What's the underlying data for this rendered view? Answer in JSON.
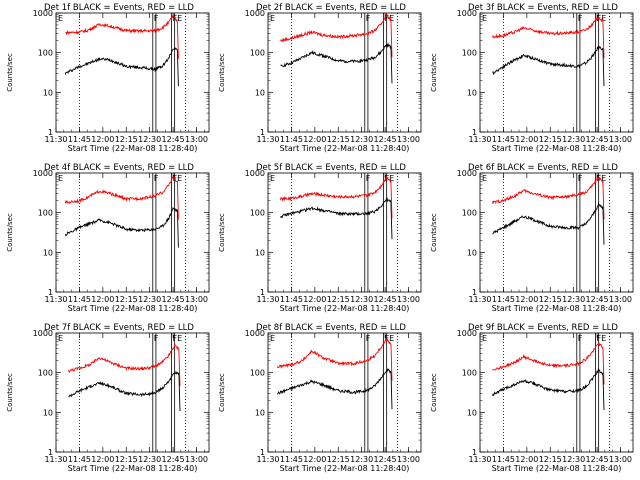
{
  "figure": {
    "ytick_labels": [
      "1",
      "10",
      "100",
      "1000"
    ],
    "xtick_labels": [
      "11:30",
      "11:45",
      "12:00",
      "12:15",
      "12:30",
      "12:45",
      "13:00"
    ],
    "ylabel": "Counts/sec",
    "xlabel": "Start Time (22-Mar-08 11:28:40)",
    "marker_labels": [
      "E",
      "F",
      "FE"
    ],
    "colors": {
      "events": "#000000",
      "lld": "#ff0000",
      "axes": "#000000",
      "background": "#ffffff"
    }
  },
  "chart_data": [
    {
      "type": "line",
      "title": "Det 1f BLACK = Events, RED = LLD",
      "xlabel": "Start Time (22-Mar-08 11:28:40)",
      "ylabel": "Counts/sec",
      "yscale": "log",
      "ylim": [
        1,
        1000
      ],
      "xlim": [
        "11:30",
        "13:08"
      ],
      "x_anchors": [
        "11:36",
        "11:45",
        "11:50",
        "11:58",
        "12:05",
        "12:15",
        "12:25",
        "12:33",
        "12:38",
        "12:42",
        "12:45",
        "12:48"
      ],
      "series": [
        {
          "name": "Events",
          "color": "#000000",
          "values": [
            30,
            45,
            52,
            70,
            65,
            45,
            42,
            38,
            45,
            70,
            130,
            120
          ]
        },
        {
          "name": "LLD",
          "color": "#ff0000",
          "values": [
            320,
            330,
            360,
            520,
            460,
            360,
            350,
            360,
            420,
            560,
            850,
            580
          ]
        }
      ]
    },
    {
      "type": "line",
      "title": "Det 2f BLACK = Events, RED = LLD",
      "xlabel": "Start Time (22-Mar-08 11:28:40)",
      "ylabel": "Counts/sec",
      "yscale": "log",
      "ylim": [
        1,
        1000
      ],
      "xlim": [
        "11:30",
        "13:08"
      ],
      "x_anchors": [
        "11:38",
        "11:45",
        "11:52",
        "11:58",
        "12:05",
        "12:15",
        "12:25",
        "12:33",
        "12:38",
        "12:42",
        "12:46",
        "12:49"
      ],
      "series": [
        {
          "name": "Events",
          "color": "#000000",
          "values": [
            45,
            55,
            75,
            100,
            85,
            62,
            60,
            65,
            75,
            100,
            160,
            140
          ]
        },
        {
          "name": "LLD",
          "color": "#ff0000",
          "values": [
            200,
            230,
            280,
            330,
            280,
            250,
            270,
            300,
            350,
            500,
            900,
            650
          ]
        }
      ]
    },
    {
      "type": "line",
      "title": "Det 3f BLACK = Events, RED = LLD",
      "xlabel": "Start Time (22-Mar-08 11:28:40)",
      "ylabel": "Counts/sec",
      "yscale": "log",
      "ylim": [
        1,
        1000
      ],
      "xlim": [
        "11:30",
        "13:08"
      ],
      "x_anchors": [
        "11:38",
        "11:45",
        "11:52",
        "11:58",
        "12:05",
        "12:15",
        "12:25",
        "12:33",
        "12:38",
        "12:42",
        "12:46",
        "12:49"
      ],
      "series": [
        {
          "name": "Events",
          "color": "#000000",
          "values": [
            30,
            45,
            65,
            85,
            70,
            52,
            48,
            45,
            55,
            80,
            140,
            120
          ]
        },
        {
          "name": "LLD",
          "color": "#ff0000",
          "values": [
            250,
            270,
            330,
            420,
            360,
            300,
            310,
            330,
            380,
            520,
            800,
            600
          ]
        }
      ]
    },
    {
      "type": "line",
      "title": "Det 4f BLACK = Events, RED = LLD",
      "xlabel": "Start Time (22-Mar-08 11:28:40)",
      "ylabel": "Counts/sec",
      "yscale": "log",
      "ylim": [
        1,
        1000
      ],
      "xlim": [
        "11:30",
        "13:08"
      ],
      "x_anchors": [
        "11:36",
        "11:45",
        "11:50",
        "11:58",
        "12:05",
        "12:15",
        "12:25",
        "12:33",
        "12:38",
        "12:42",
        "12:45",
        "12:48"
      ],
      "series": [
        {
          "name": "Events",
          "color": "#000000",
          "values": [
            28,
            42,
            50,
            65,
            55,
            38,
            36,
            38,
            45,
            70,
            130,
            110
          ]
        },
        {
          "name": "LLD",
          "color": "#ff0000",
          "values": [
            180,
            200,
            240,
            350,
            300,
            220,
            230,
            260,
            320,
            480,
            800,
            560
          ]
        }
      ]
    },
    {
      "type": "line",
      "title": "Det 5f BLACK = Events, RED = LLD",
      "xlabel": "Start Time (22-Mar-08 11:28:40)",
      "ylabel": "Counts/sec",
      "yscale": "log",
      "ylim": [
        1,
        1000
      ],
      "xlim": [
        "11:30",
        "13:08"
      ],
      "x_anchors": [
        "11:38",
        "11:45",
        "11:52",
        "11:58",
        "12:05",
        "12:15",
        "12:25",
        "12:33",
        "12:38",
        "12:42",
        "12:46",
        "12:49"
      ],
      "series": [
        {
          "name": "Events",
          "color": "#000000",
          "values": [
            80,
            95,
            110,
            130,
            115,
            95,
            92,
            95,
            105,
            140,
            220,
            180
          ]
        },
        {
          "name": "LLD",
          "color": "#ff0000",
          "values": [
            220,
            230,
            260,
            300,
            280,
            250,
            255,
            270,
            320,
            450,
            800,
            600
          ]
        }
      ]
    },
    {
      "type": "line",
      "title": "Det 6f BLACK = Events, RED = LLD",
      "xlabel": "Start Time (22-Mar-08 11:28:40)",
      "ylabel": "Counts/sec",
      "yscale": "log",
      "ylim": [
        1,
        1000
      ],
      "xlim": [
        "11:30",
        "13:08"
      ],
      "x_anchors": [
        "11:38",
        "11:45",
        "11:52",
        "11:58",
        "12:05",
        "12:15",
        "12:25",
        "12:33",
        "12:38",
        "12:42",
        "12:46",
        "12:49"
      ],
      "series": [
        {
          "name": "Events",
          "color": "#000000",
          "values": [
            30,
            42,
            60,
            80,
            65,
            45,
            42,
            42,
            52,
            85,
            160,
            130
          ]
        },
        {
          "name": "LLD",
          "color": "#ff0000",
          "values": [
            180,
            200,
            260,
            360,
            300,
            240,
            250,
            280,
            330,
            480,
            780,
            560
          ]
        }
      ]
    },
    {
      "type": "line",
      "title": "Det 7f BLACK = Events, RED = LLD",
      "xlabel": "Start Time (22-Mar-08 11:28:40)",
      "ylabel": "Counts/sec",
      "yscale": "log",
      "ylim": [
        1,
        1000
      ],
      "xlim": [
        "11:30",
        "13:08"
      ],
      "x_anchors": [
        "11:38",
        "11:45",
        "11:52",
        "11:58",
        "12:05",
        "12:15",
        "12:25",
        "12:33",
        "12:38",
        "12:42",
        "12:46",
        "12:49"
      ],
      "series": [
        {
          "name": "Events",
          "color": "#000000",
          "values": [
            25,
            35,
            45,
            55,
            45,
            30,
            28,
            30,
            40,
            60,
            100,
            90
          ]
        },
        {
          "name": "LLD",
          "color": "#ff0000",
          "values": [
            110,
            130,
            160,
            240,
            180,
            130,
            125,
            140,
            180,
            260,
            480,
            380
          ]
        }
      ]
    },
    {
      "type": "line",
      "title": "Det 8f BLACK = Events, RED = LLD",
      "xlabel": "Start Time (22-Mar-08 11:28:40)",
      "ylabel": "Counts/sec",
      "yscale": "log",
      "ylim": [
        1,
        1000
      ],
      "xlim": [
        "11:30",
        "13:08"
      ],
      "x_anchors": [
        "11:36",
        "11:45",
        "11:52",
        "11:58",
        "12:05",
        "12:15",
        "12:25",
        "12:33",
        "12:38",
        "12:42",
        "12:46",
        "12:49"
      ],
      "series": [
        {
          "name": "Events",
          "color": "#000000",
          "values": [
            30,
            40,
            50,
            60,
            50,
            35,
            32,
            35,
            45,
            70,
            120,
            100
          ]
        },
        {
          "name": "LLD",
          "color": "#ff0000",
          "values": [
            140,
            160,
            200,
            350,
            240,
            170,
            170,
            200,
            260,
            420,
            700,
            520
          ]
        }
      ]
    },
    {
      "type": "line",
      "title": "Det 9f BLACK = Events, RED = LLD",
      "xlabel": "Start Time (22-Mar-08 11:28:40)",
      "ylabel": "Counts/sec",
      "yscale": "log",
      "ylim": [
        1,
        1000
      ],
      "xlim": [
        "11:30",
        "13:08"
      ],
      "x_anchors": [
        "11:38",
        "11:45",
        "11:52",
        "11:58",
        "12:05",
        "12:15",
        "12:25",
        "12:33",
        "12:38",
        "12:42",
        "12:46",
        "12:49"
      ],
      "series": [
        {
          "name": "Events",
          "color": "#000000",
          "values": [
            28,
            38,
            50,
            62,
            52,
            36,
            34,
            35,
            45,
            70,
            115,
            95
          ]
        },
        {
          "name": "LLD",
          "color": "#ff0000",
          "values": [
            120,
            140,
            180,
            250,
            200,
            150,
            150,
            170,
            220,
            330,
            560,
            420
          ]
        }
      ]
    }
  ]
}
